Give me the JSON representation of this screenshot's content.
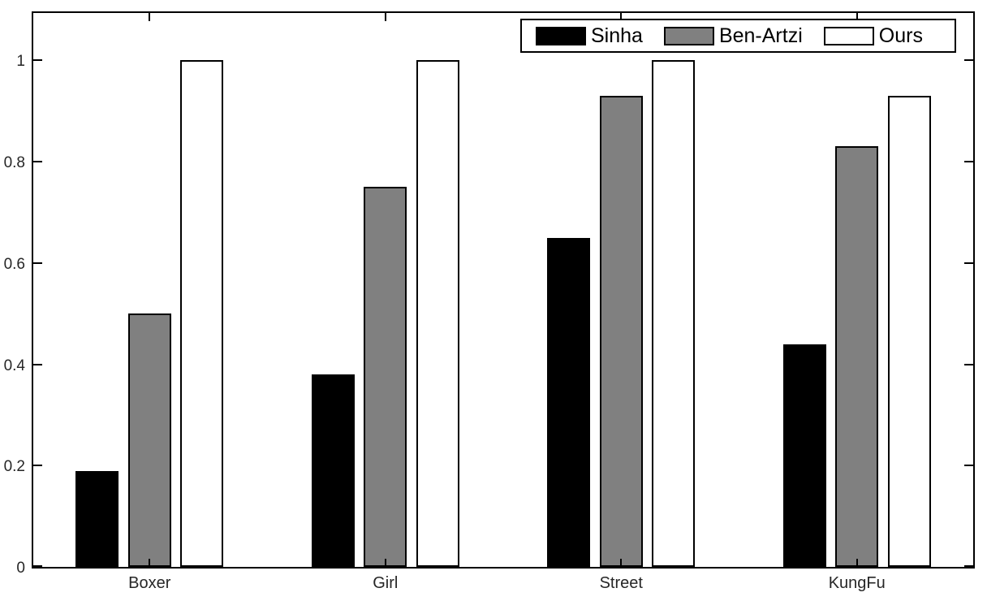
{
  "figure": {
    "background": "#ffffff",
    "axis_color": "#000000",
    "tick_label_color": "#262626"
  },
  "chart_data": {
    "type": "bar",
    "title": "",
    "xlabel": "",
    "ylabel": "",
    "categories": [
      "Boxer",
      "Girl",
      "Street",
      "KungFu"
    ],
    "series": [
      {
        "name": "Sinha",
        "color": "#000000",
        "values": [
          0.19,
          0.38,
          0.65,
          0.44
        ]
      },
      {
        "name": "Ben-Artzi",
        "color": "#808080",
        "values": [
          0.5,
          0.75,
          0.93,
          0.83
        ]
      },
      {
        "name": "Ours",
        "color": "#ffffff",
        "values": [
          1.0,
          1.0,
          1.0,
          0.93
        ]
      }
    ],
    "bar_edge_color": "#000000",
    "y_ticks": [
      {
        "label": "0",
        "value": 0.0
      },
      {
        "label": "0.2",
        "value": 0.2
      },
      {
        "label": "0.4",
        "value": 0.4
      },
      {
        "label": "0.6",
        "value": 0.6
      },
      {
        "label": "0.8",
        "value": 0.8
      },
      {
        "label": "1",
        "value": 1.0
      }
    ],
    "ylim": [
      0,
      1.1
    ],
    "grid": false,
    "box": true,
    "tick_direction": "in",
    "legend_position": "top-right"
  }
}
